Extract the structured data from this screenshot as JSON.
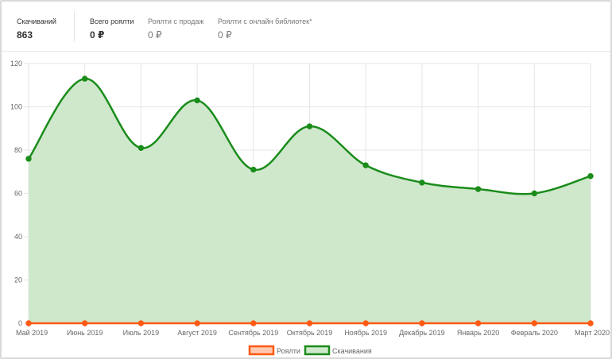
{
  "stats": [
    {
      "label": "Скачиваний",
      "value": "863",
      "strong": true
    },
    {
      "label": "Всего роялти",
      "value": "0 ₽",
      "strong": true
    },
    {
      "label": "Роялти с продаж",
      "value": "0 ₽",
      "strong": false
    },
    {
      "label": "Роялти с онлайн библиотек*",
      "value": "0 ₽",
      "strong": false
    }
  ],
  "colors": {
    "downloads": "#1a8c1a",
    "downloads_fill": "#cfe8cc",
    "royalty": "#ff5a14",
    "grid": "#e5e5e5"
  },
  "chart_data": {
    "type": "line",
    "categories": [
      "Май 2019",
      "Июнь 2019",
      "Июль 2019",
      "Август 2019",
      "Сентябрь 2019",
      "Октябрь 2019",
      "Ноябрь 2019",
      "Декабрь 2019",
      "Январь 2020",
      "Февраль 2020",
      "Март 2020"
    ],
    "series": [
      {
        "name": "Роялти",
        "color": "#ff5a14",
        "fill": false,
        "values": [
          0,
          0,
          0,
          0,
          0,
          0,
          0,
          0,
          0,
          0,
          0
        ]
      },
      {
        "name": "Скачивания",
        "color": "#1a8c1a",
        "fill": true,
        "values": [
          76,
          113,
          81,
          103,
          71,
          91,
          73,
          65,
          62,
          60,
          68
        ]
      }
    ],
    "ylim": [
      0,
      120
    ],
    "yticks": [
      0,
      20,
      40,
      60,
      80,
      100,
      120
    ],
    "grid": true,
    "legend": "bottom-center"
  }
}
